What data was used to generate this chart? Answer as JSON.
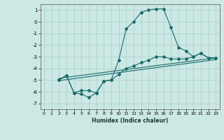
{
  "xlabel": "Humidex (Indice chaleur)",
  "ylabel": "",
  "background_color": "#cce8e4",
  "grid_color": "#aaccc8",
  "line_color": "#1a6b6b",
  "xlim": [
    -0.5,
    23.5
  ],
  "ylim": [
    -7.5,
    1.5
  ],
  "xticks": [
    0,
    1,
    2,
    3,
    4,
    5,
    6,
    7,
    8,
    9,
    10,
    11,
    12,
    13,
    14,
    15,
    16,
    17,
    18,
    19,
    20,
    21,
    22,
    23
  ],
  "yticks": [
    -7,
    -6,
    -5,
    -4,
    -3,
    -2,
    -1,
    0,
    1
  ],
  "line1_x": [
    2,
    3,
    4,
    5,
    6,
    7,
    8,
    9,
    10,
    11,
    12,
    13,
    14,
    15,
    16,
    17,
    18,
    19,
    20,
    21,
    22,
    23
  ],
  "line1_y": [
    -5.0,
    -4.6,
    -6.1,
    -5.9,
    -5.9,
    -6.1,
    -5.1,
    -5.0,
    -3.3,
    -0.6,
    0.0,
    0.8,
    1.0,
    1.1,
    1.1,
    -0.5,
    -2.2,
    -2.5,
    -3.0,
    -2.7,
    -3.1,
    -3.1
  ],
  "line2_x": [
    2,
    3,
    4,
    5,
    6,
    7,
    8,
    9,
    10,
    11,
    12,
    13,
    14,
    15,
    16,
    17,
    18,
    19,
    20,
    21,
    22,
    23
  ],
  "line2_y": [
    -5.0,
    -4.6,
    -6.1,
    -6.2,
    -6.5,
    -6.1,
    -5.1,
    -5.0,
    -4.5,
    -4.0,
    -3.8,
    -3.5,
    -3.3,
    -3.0,
    -3.0,
    -3.2,
    -3.2,
    -3.2,
    -3.0,
    -2.7,
    -3.1,
    -3.1
  ],
  "line3_x": [
    2,
    23
  ],
  "line3_y": [
    -4.85,
    -3.1
  ],
  "line4_x": [
    2,
    23
  ],
  "line4_y": [
    -5.05,
    -3.25
  ]
}
